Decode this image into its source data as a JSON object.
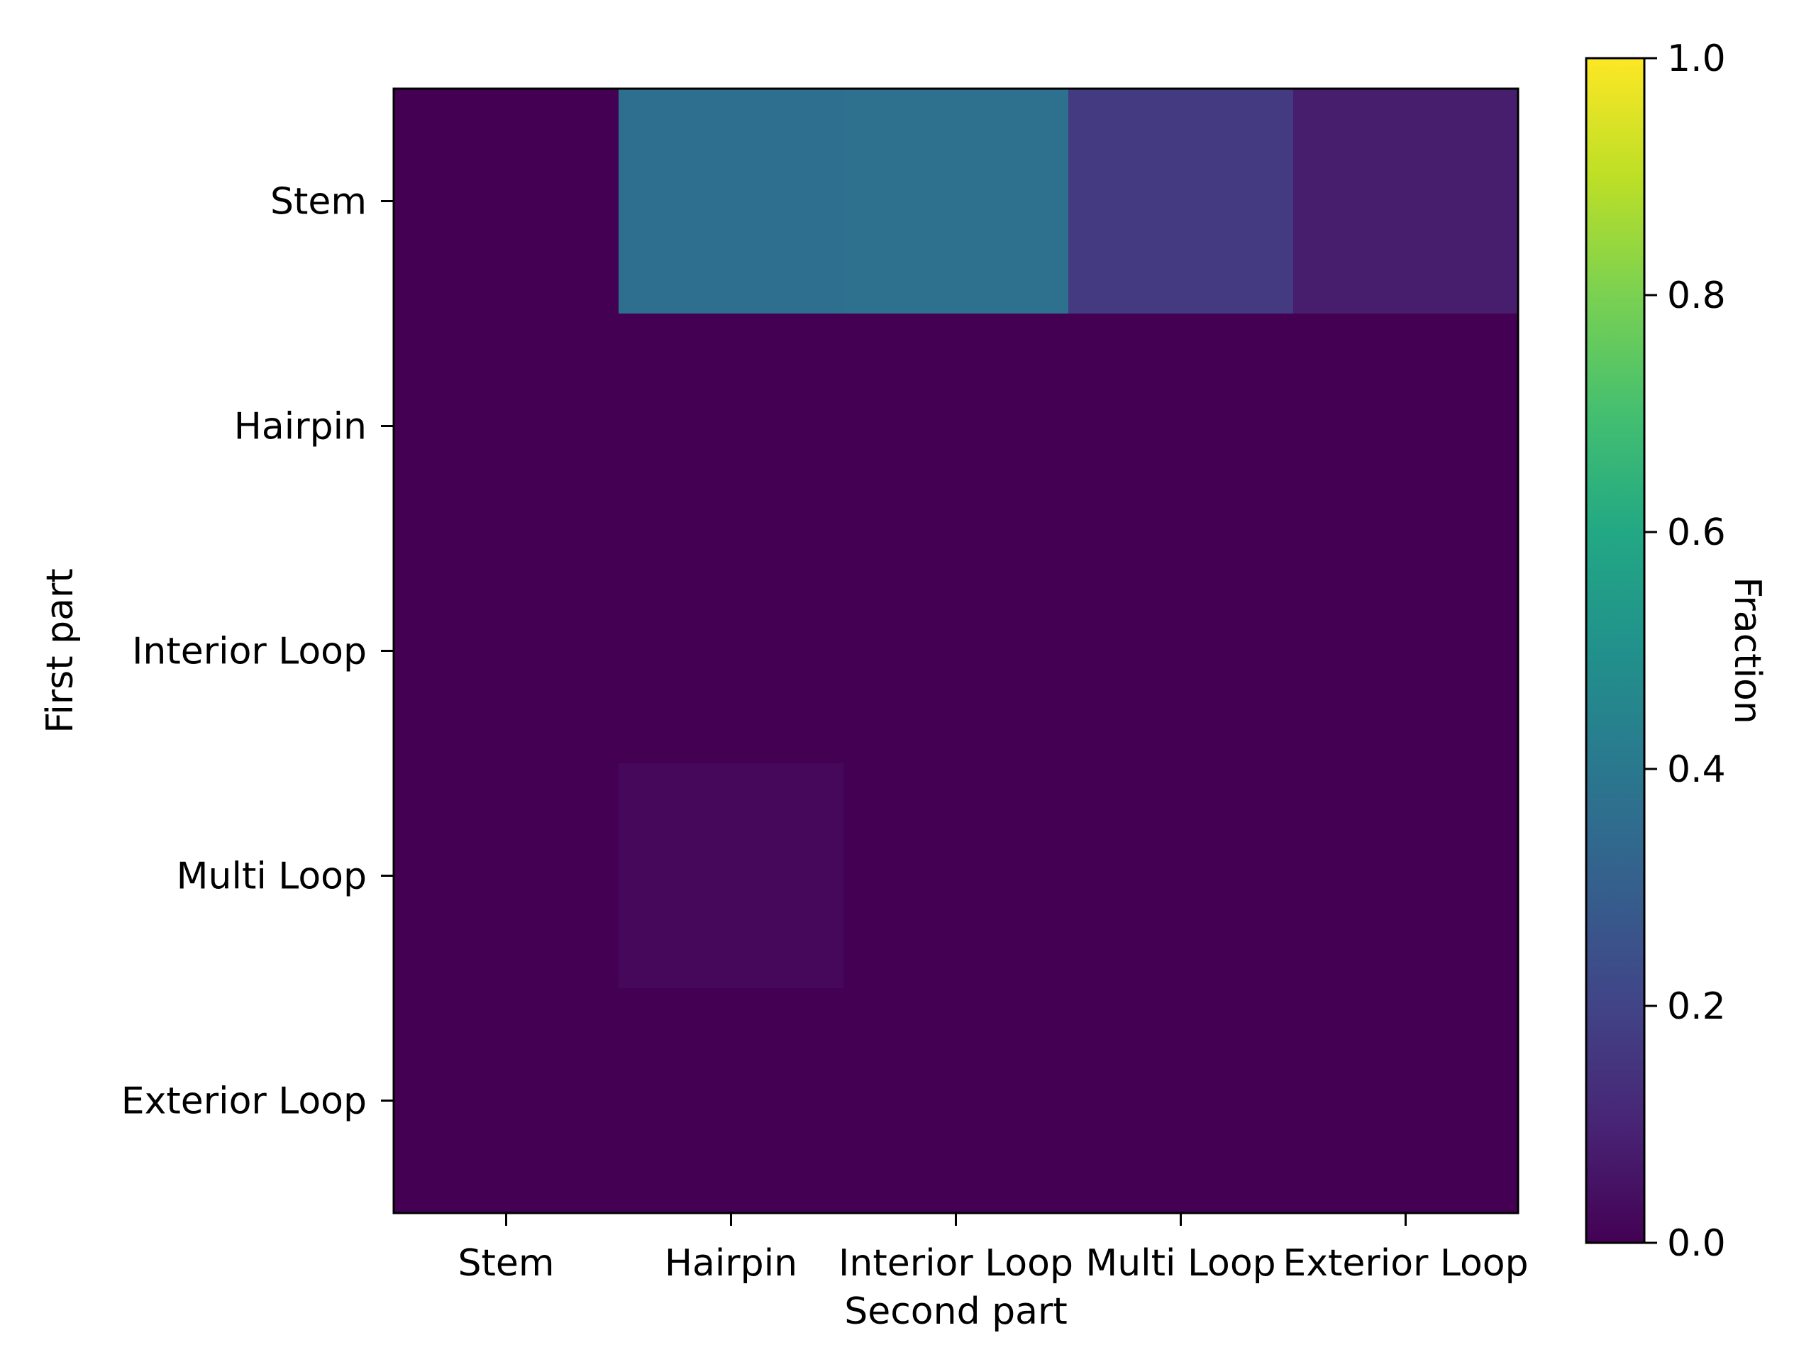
{
  "chart_data": {
    "type": "heatmap",
    "title": "",
    "xlabel": "Second part",
    "ylabel": "First part",
    "x_categories": [
      "Stem",
      "Hairpin",
      "Interior Loop",
      "Multi Loop",
      "Exterior Loop"
    ],
    "y_categories": [
      "Stem",
      "Hairpin",
      "Interior Loop",
      "Multi Loop",
      "Exterior Loop"
    ],
    "values": [
      [
        0.0,
        0.36,
        0.37,
        0.17,
        0.08
      ],
      [
        0.0,
        0.0,
        0.0,
        0.0,
        0.0
      ],
      [
        0.0,
        0.0,
        0.0,
        0.0,
        0.0
      ],
      [
        0.0,
        0.02,
        0.0,
        0.0,
        0.0
      ],
      [
        0.0,
        0.0,
        0.0,
        0.0,
        0.0
      ]
    ],
    "colormap": "viridis",
    "colorbar": {
      "label": "Fraction",
      "range": [
        0.0,
        1.0
      ],
      "ticks": [
        "0.0",
        "0.2",
        "0.4",
        "0.6",
        "0.8",
        "1.0"
      ]
    },
    "grid": false
  }
}
